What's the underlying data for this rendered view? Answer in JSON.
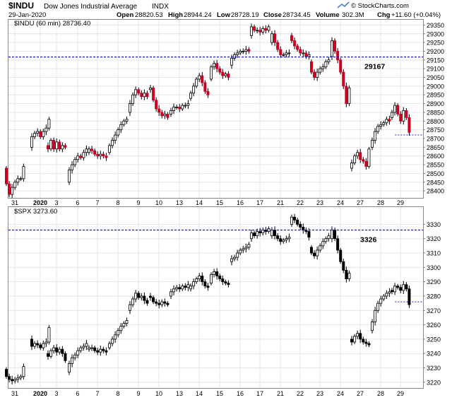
{
  "header": {
    "symbol": "$INDU",
    "name": "Dow Jones Industrial Average",
    "exchange": "INDX",
    "date": "29-Jan-2020",
    "open_label": "Open",
    "open": "28820.53",
    "high_label": "High",
    "high": "28944.24",
    "low_label": "Low",
    "low": "28728.19",
    "close_label": "Close",
    "close": "28734.45",
    "volume_label": "Volume",
    "volume": "302.3M",
    "chg_label": "Chg",
    "chg": "+11.60 (+0.04%)",
    "logo": "© StockCharts.com",
    "logo_icon": "trend-arrow-icon"
  },
  "colors": {
    "up": "#ffffff",
    "down_indu": "#cc0022",
    "down_spx": "#000000",
    "ref_line": "#1a1acc",
    "grid": "#e4e4e4"
  },
  "chart_data": [
    {
      "type": "candlestick",
      "panel_label": "$INDU (60 min) 28736.40",
      "ylim": [
        28360,
        29380
      ],
      "y_ticks": [
        28400,
        28450,
        28500,
        28550,
        28600,
        28650,
        28700,
        28750,
        28800,
        28850,
        28900,
        28950,
        29000,
        29050,
        29100,
        29150,
        29200,
        29250,
        29300,
        29350
      ],
      "reference_line": {
        "value": 29167,
        "label": "29167"
      },
      "last_value_marker": 28720,
      "x_tick_labels": [
        "31",
        "2020",
        "3",
        "6",
        "7",
        "8",
        "9",
        "10",
        "13",
        "14",
        "15",
        "16",
        "17",
        "21",
        "22",
        "23",
        "24",
        "27",
        "28",
        "29"
      ],
      "sessions": [
        {
          "label": "31",
          "anchors": [
            28530,
            28440,
            28380,
            28420,
            28450,
            28470,
            28470,
            28540
          ]
        },
        {
          "label": "2020",
          "anchors": [
            28650,
            28710,
            28730,
            28740,
            28710,
            28740,
            28760,
            28810
          ]
        },
        {
          "label": "3",
          "anchors": [
            28660,
            28640,
            28690,
            28640,
            28680,
            28640,
            28660,
            28650
          ]
        },
        {
          "label": "6",
          "anchors": [
            28450,
            28520,
            28550,
            28580,
            28600,
            28590,
            28620,
            28640
          ]
        },
        {
          "label": "7",
          "anchors": [
            28620,
            28640,
            28630,
            28610,
            28600,
            28610,
            28600,
            28590
          ]
        },
        {
          "label": "8",
          "anchors": [
            28620,
            28660,
            28690,
            28720,
            28750,
            28780,
            28800,
            28810
          ]
        },
        {
          "label": "9",
          "anchors": [
            28850,
            28900,
            28950,
            28980,
            28960,
            28940,
            28960,
            28940
          ]
        },
        {
          "label": "10",
          "anchors": [
            28980,
            28990,
            28920,
            28870,
            28850,
            28830,
            28840,
            28820
          ]
        },
        {
          "label": "13",
          "anchors": [
            28840,
            28860,
            28880,
            28880,
            28870,
            28890,
            28890,
            28900
          ]
        },
        {
          "label": "14",
          "anchors": [
            28930,
            28960,
            29000,
            29040,
            29060,
            29020,
            28970,
            28950
          ]
        },
        {
          "label": "15",
          "anchors": [
            29040,
            29110,
            29130,
            29100,
            29080,
            29060,
            29070,
            29050
          ]
        },
        {
          "label": "16",
          "anchors": [
            29120,
            29160,
            29180,
            29190,
            29200,
            29200,
            29210,
            29200
          ]
        },
        {
          "label": "17",
          "anchors": [
            29290,
            29340,
            29320,
            29320,
            29310,
            29330,
            29320,
            29340
          ]
        },
        {
          "label": "21",
          "anchors": [
            29250,
            29300,
            29250,
            29210,
            29180,
            29180,
            29190,
            29190
          ]
        },
        {
          "label": "22",
          "anchors": [
            29290,
            29260,
            29230,
            29210,
            29190,
            29190,
            29170,
            29180
          ]
        },
        {
          "label": "23",
          "anchors": [
            29140,
            29080,
            29050,
            29080,
            29100,
            29110,
            29140,
            29150
          ]
        },
        {
          "label": "24",
          "anchors": [
            29170,
            29260,
            29200,
            29150,
            29080,
            29000,
            28900,
            28990
          ]
        },
        {
          "label": "27",
          "anchors": [
            28530,
            28560,
            28600,
            28620,
            28580,
            28570,
            28540,
            28640
          ]
        },
        {
          "label": "28",
          "anchors": [
            28650,
            28690,
            28740,
            28770,
            28780,
            28790,
            28810,
            28800
          ]
        },
        {
          "label": "29",
          "anchors": [
            28820,
            28850,
            28890,
            28840,
            28800,
            28860,
            28820,
            28735
          ]
        }
      ]
    },
    {
      "type": "candlestick",
      "panel_label": "$SPX 3273.60",
      "ylim": [
        3216,
        3342
      ],
      "y_ticks": [
        3220,
        3230,
        3240,
        3250,
        3260,
        3270,
        3280,
        3290,
        3300,
        3310,
        3320,
        3330
      ],
      "reference_line": {
        "value": 3326,
        "label": "3326"
      },
      "last_value_marker": 3276,
      "x_tick_labels": [
        "31",
        "2020",
        "3",
        "6",
        "7",
        "8",
        "9",
        "10",
        "13",
        "14",
        "15",
        "16",
        "17",
        "21",
        "22",
        "23",
        "24",
        "27",
        "28",
        "29"
      ],
      "sessions": [
        {
          "label": "31",
          "anchors": [
            3229,
            3224,
            3222,
            3221,
            3222,
            3223,
            3224,
            3231
          ]
        },
        {
          "label": "2020",
          "anchors": [
            3250,
            3245,
            3247,
            3246,
            3244,
            3247,
            3248,
            3258
          ]
        },
        {
          "label": "3",
          "anchors": [
            3240,
            3238,
            3242,
            3244,
            3241,
            3243,
            3240,
            3235
          ]
        },
        {
          "label": "6",
          "anchors": [
            3227,
            3233,
            3237,
            3239,
            3242,
            3244,
            3245,
            3247
          ]
        },
        {
          "label": "7",
          "anchors": [
            3243,
            3244,
            3244,
            3242,
            3241,
            3243,
            3242,
            3241
          ]
        },
        {
          "label": "8",
          "anchors": [
            3244,
            3247,
            3250,
            3253,
            3256,
            3259,
            3261,
            3263
          ]
        },
        {
          "label": "9",
          "anchors": [
            3270,
            3274,
            3278,
            3282,
            3279,
            3280,
            3277,
            3275
          ]
        },
        {
          "label": "10",
          "anchors": [
            3280,
            3279,
            3276,
            3275,
            3274,
            3276,
            3275,
            3274
          ]
        },
        {
          "label": "13",
          "anchors": [
            3280,
            3283,
            3285,
            3286,
            3285,
            3287,
            3286,
            3288
          ]
        },
        {
          "label": "14",
          "anchors": [
            3285,
            3287,
            3290,
            3292,
            3294,
            3290,
            3287,
            3286
          ]
        },
        {
          "label": "15",
          "anchors": [
            3289,
            3295,
            3297,
            3294,
            3292,
            3290,
            3289,
            3288
          ]
        },
        {
          "label": "16",
          "anchors": [
            3304,
            3306,
            3307,
            3310,
            3312,
            3313,
            3314,
            3316
          ]
        },
        {
          "label": "17",
          "anchors": [
            3320,
            3324,
            3322,
            3325,
            3324,
            3326,
            3325,
            3327
          ]
        },
        {
          "label": "21",
          "anchors": [
            3322,
            3326,
            3322,
            3320,
            3318,
            3319,
            3320,
            3321
          ]
        },
        {
          "label": "22",
          "anchors": [
            3330,
            3335,
            3333,
            3330,
            3328,
            3326,
            3325,
            3321
          ]
        },
        {
          "label": "23",
          "anchors": [
            3314,
            3310,
            3308,
            3312,
            3315,
            3318,
            3320,
            3322
          ]
        },
        {
          "label": "24",
          "anchors": [
            3320,
            3326,
            3320,
            3312,
            3304,
            3298,
            3292,
            3296
          ]
        },
        {
          "label": "27",
          "anchors": [
            3250,
            3248,
            3252,
            3254,
            3250,
            3248,
            3247,
            3246
          ]
        },
        {
          "label": "28",
          "anchors": [
            3256,
            3262,
            3270,
            3275,
            3278,
            3280,
            3282,
            3283
          ]
        },
        {
          "label": "29",
          "anchors": [
            3284,
            3283,
            3287,
            3286,
            3284,
            3288,
            3285,
            3274
          ]
        }
      ]
    }
  ]
}
